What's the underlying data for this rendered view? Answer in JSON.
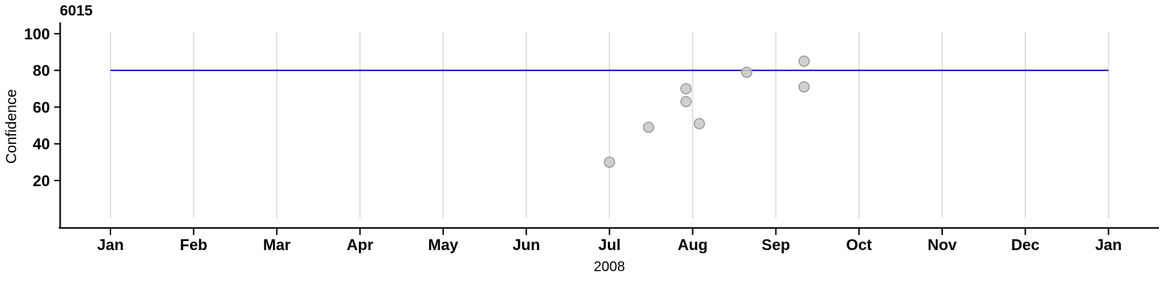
{
  "chart_data": {
    "type": "scatter",
    "title": "6015",
    "xlabel": "2008",
    "ylabel": "Confidence",
    "x_axis": {
      "tick_labels": [
        "Jan",
        "Feb",
        "Mar",
        "Apr",
        "May",
        "Jun",
        "Jul",
        "Aug",
        "Sep",
        "Oct",
        "Nov",
        "Dec",
        "Jan"
      ],
      "unit": "months since 2008-01-01",
      "range_months": [
        -0.6,
        12.6
      ],
      "grid": "vertical line at each month"
    },
    "y_axis": {
      "ticks": [
        20,
        40,
        60,
        80,
        100
      ],
      "range": [
        0,
        100.5
      ]
    },
    "reference_line": {
      "value": 80,
      "span_months": [
        0,
        12
      ],
      "color": "#0000cc"
    },
    "points": [
      {
        "x_month": 6.0,
        "date_approx": "2008-07-01",
        "value": 30
      },
      {
        "x_month": 6.47,
        "date_approx": "2008-07-15",
        "value": 49
      },
      {
        "x_month": 6.92,
        "date_approx": "2008-07-29",
        "value": 70
      },
      {
        "x_month": 6.92,
        "date_approx": "2008-07-29",
        "value": 63
      },
      {
        "x_month": 7.08,
        "date_approx": "2008-08-03",
        "value": 51
      },
      {
        "x_month": 7.65,
        "date_approx": "2008-08-21",
        "value": 79
      },
      {
        "x_month": 8.34,
        "date_approx": "2008-09-11",
        "value": 85
      },
      {
        "x_month": 8.34,
        "date_approx": "2008-09-11",
        "value": 71
      }
    ],
    "legend": "none"
  },
  "style": {
    "background": "#ffffff",
    "axis_color": "#000000",
    "grid_color": "#d6d6d6",
    "refline_color": "#0000cc",
    "point_fill": "#cacaca",
    "point_stroke": "#9b9b9b",
    "text_color": "#000000"
  }
}
